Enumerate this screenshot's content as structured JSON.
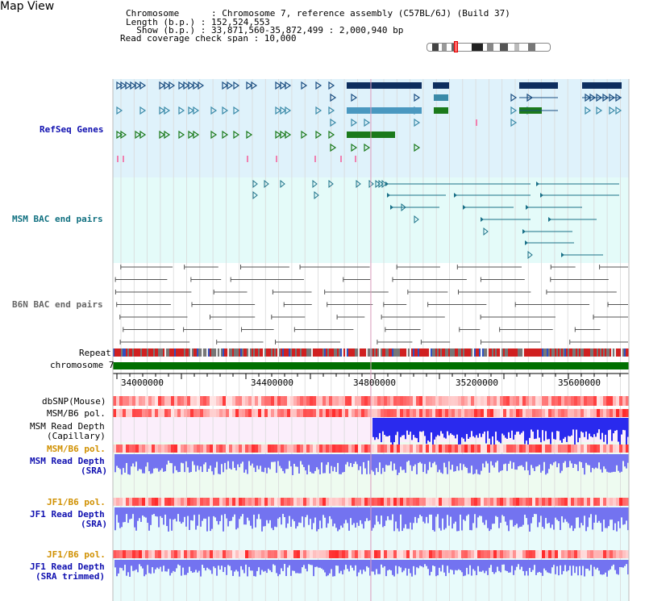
{
  "view_title": "Map View",
  "header": {
    "chromosome": "Chromosome      : Chromosome 7, reference assembly (C57BL/6J) (Build 37)",
    "length": "Length (b.p.) : 152,524,553",
    "show": "  Show (b.p.) : 33,871,560-35,872,499 : 2,000,940 bp",
    "coverage": "Read coverage check span : 10,000"
  },
  "tracks": {
    "refseq": "RefSeq Genes",
    "msm_bac": "MSM BAC end pairs",
    "b6n_bac": "B6N BAC end pairs",
    "repeat": "Repeat",
    "chromosome": "chromosome 7",
    "dbsnp": "dbSNP(Mouse)",
    "msm_b6_pol_1": "MSM/B6 pol.",
    "msm_depth_cap_1": "MSM Read Depth",
    "msm_depth_cap_2": "(Capillary)",
    "msm_b6_pol_2": "MSM/B6 pol.",
    "msm_depth_sra_1": "MSM Read Depth",
    "msm_depth_sra_2": "(SRA)",
    "jf1_b6_pol_1": "JF1/B6 pol.",
    "jf1_depth_sra_1": "JF1 Read Depth",
    "jf1_depth_sra_2": "(SRA)",
    "jf1_b6_pol_2": "JF1/B6 pol.",
    "jf1_depth_trim_1": "JF1 Read Depth",
    "jf1_depth_trim_2": "(SRA trimmed)"
  },
  "axis_ticks": [
    "34000000",
    "34400000",
    "34800000",
    "35200000",
    "35600000"
  ],
  "colors": {
    "refseq_bg": "#dff2fb",
    "msm_bac_bg": "#e4fbf9",
    "b6n_bg": "#ffffff",
    "chrom_bar": "#007000",
    "depth_fill": "#6b6bff",
    "pol_red": "#ee3333"
  }
}
